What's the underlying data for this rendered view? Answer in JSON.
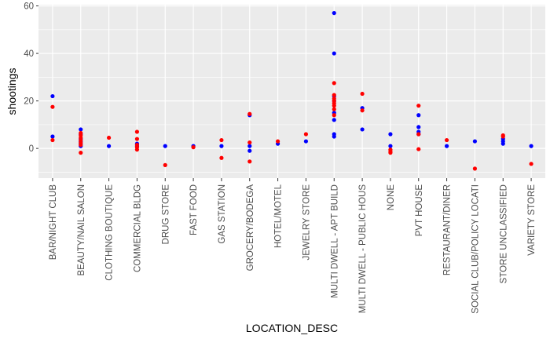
{
  "chart_data": {
    "type": "scatter",
    "xlabel": "LOCATION_DESC",
    "ylabel": "shootings",
    "ylim": [
      -12.5,
      60.5
    ],
    "yticks": [
      0,
      20,
      40,
      60
    ],
    "grid": true,
    "background": "#ebebeb",
    "categories": [
      "BAR/NIGHT CLUB",
      "BEAUTY/NAIL SALON",
      "CLOTHING BOUTIQUE",
      "COMMERCIAL BLDG",
      "DRUG STORE",
      "FAST FOOD",
      "GAS STATION",
      "GROCERY/BODEGA",
      "HOTEL/MOTEL",
      "JEWELRY STORE",
      "MULTI DWELL - APT BUILD",
      "MULTI DWELL - PUBLIC HOUS",
      "NONE",
      "PVT HOUSE",
      "RESTAURANT/DINER",
      "SOCIAL CLUB/POLICY LOCATI",
      "STORE UNCLASSIFIED",
      "VARIETY STORE"
    ],
    "series": [
      {
        "color": "#0000ff",
        "points": [
          [
            "BAR/NIGHT CLUB",
            22
          ],
          [
            "BAR/NIGHT CLUB",
            5
          ],
          [
            "BEAUTY/NAIL SALON",
            8
          ],
          [
            "BEAUTY/NAIL SALON",
            6
          ],
          [
            "BEAUTY/NAIL SALON",
            4
          ],
          [
            "BEAUTY/NAIL SALON",
            3
          ],
          [
            "BEAUTY/NAIL SALON",
            2
          ],
          [
            "BEAUTY/NAIL SALON",
            1
          ],
          [
            "CLOTHING BOUTIQUE",
            1
          ],
          [
            "COMMERCIAL BLDG",
            2
          ],
          [
            "COMMERCIAL BLDG",
            1
          ],
          [
            "DRUG STORE",
            1
          ],
          [
            "FAST FOOD",
            1
          ],
          [
            "GAS STATION",
            1
          ],
          [
            "GROCERY/BODEGA",
            14
          ],
          [
            "GROCERY/BODEGA",
            1
          ],
          [
            "GROCERY/BODEGA",
            -1
          ],
          [
            "HOTEL/MOTEL",
            2
          ],
          [
            "JEWELRY STORE",
            3
          ],
          [
            "MULTI DWELL - APT BUILD",
            57
          ],
          [
            "MULTI DWELL - APT BUILD",
            40
          ],
          [
            "MULTI DWELL - APT BUILD",
            22
          ],
          [
            "MULTI DWELL - APT BUILD",
            20
          ],
          [
            "MULTI DWELL - APT BUILD",
            15
          ],
          [
            "MULTI DWELL - APT BUILD",
            12
          ],
          [
            "MULTI DWELL - APT BUILD",
            6
          ],
          [
            "MULTI DWELL - APT BUILD",
            5
          ],
          [
            "MULTI DWELL - PUBLIC HOUS",
            17
          ],
          [
            "MULTI DWELL - PUBLIC HOUS",
            8
          ],
          [
            "NONE",
            6
          ],
          [
            "NONE",
            1
          ],
          [
            "PVT HOUSE",
            14
          ],
          [
            "PVT HOUSE",
            9
          ],
          [
            "PVT HOUSE",
            7
          ],
          [
            "PVT HOUSE",
            6
          ],
          [
            "RESTAURANT/DINER",
            1
          ],
          [
            "SOCIAL CLUB/POLICY LOCATI",
            3
          ],
          [
            "STORE UNCLASSIFIED",
            4
          ],
          [
            "STORE UNCLASSIFIED",
            3
          ],
          [
            "STORE UNCLASSIFIED",
            2
          ],
          [
            "VARIETY STORE",
            1
          ]
        ]
      },
      {
        "color": "#ff0000",
        "points": [
          [
            "BAR/NIGHT CLUB",
            17.5
          ],
          [
            "BAR/NIGHT CLUB",
            3.5
          ],
          [
            "BEAUTY/NAIL SALON",
            6.5
          ],
          [
            "BEAUTY/NAIL SALON",
            5.5
          ],
          [
            "BEAUTY/NAIL SALON",
            4.5
          ],
          [
            "BEAUTY/NAIL SALON",
            3.5
          ],
          [
            "BEAUTY/NAIL SALON",
            2.5
          ],
          [
            "BEAUTY/NAIL SALON",
            1.5
          ],
          [
            "BEAUTY/NAIL SALON",
            -1.8
          ],
          [
            "CLOTHING BOUTIQUE",
            4.5
          ],
          [
            "COMMERCIAL BLDG",
            7
          ],
          [
            "COMMERCIAL BLDG",
            4
          ],
          [
            "COMMERCIAL BLDG",
            1.5
          ],
          [
            "COMMERCIAL BLDG",
            0.5
          ],
          [
            "COMMERCIAL BLDG",
            -0.5
          ],
          [
            "DRUG STORE",
            -7
          ],
          [
            "FAST FOOD",
            0.5
          ],
          [
            "GAS STATION",
            3.5
          ],
          [
            "GAS STATION",
            -4
          ],
          [
            "GROCERY/BODEGA",
            14.5
          ],
          [
            "GROCERY/BODEGA",
            2.5
          ],
          [
            "GROCERY/BODEGA",
            -5.5
          ],
          [
            "HOTEL/MOTEL",
            3
          ],
          [
            "JEWELRY STORE",
            6
          ],
          [
            "MULTI DWELL - APT BUILD",
            27.5
          ],
          [
            "MULTI DWELL - APT BUILD",
            22.5
          ],
          [
            "MULTI DWELL - APT BUILD",
            21
          ],
          [
            "MULTI DWELL - APT BUILD",
            20
          ],
          [
            "MULTI DWELL - APT BUILD",
            19
          ],
          [
            "MULTI DWELL - APT BUILD",
            18
          ],
          [
            "MULTI DWELL - APT BUILD",
            16.5
          ],
          [
            "MULTI DWELL - APT BUILD",
            14
          ],
          [
            "MULTI DWELL - PUBLIC HOUS",
            23
          ],
          [
            "MULTI DWELL - PUBLIC HOUS",
            16
          ],
          [
            "NONE",
            -0.5
          ],
          [
            "NONE",
            -1.2
          ],
          [
            "NONE",
            -1.8
          ],
          [
            "PVT HOUSE",
            18
          ],
          [
            "PVT HOUSE",
            6
          ],
          [
            "PVT HOUSE",
            -0.3
          ],
          [
            "RESTAURANT/DINER",
            3.5
          ],
          [
            "SOCIAL CLUB/POLICY LOCATI",
            -8.5
          ],
          [
            "STORE UNCLASSIFIED",
            5.5
          ],
          [
            "STORE UNCLASSIFIED",
            5
          ],
          [
            "VARIETY STORE",
            -6.5
          ]
        ]
      }
    ]
  }
}
